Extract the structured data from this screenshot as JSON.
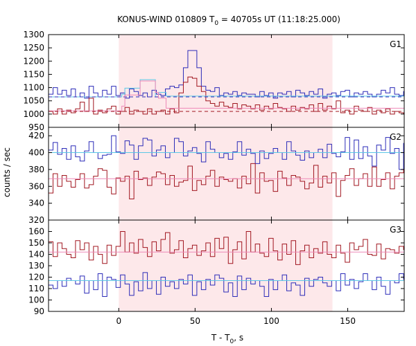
{
  "chart_data": {
    "type": "line",
    "title": {
      "prefix": "KONUS-WIND 010809 T",
      "sub": "0",
      "suffix": " = 40705s UT (11:18:25.000)"
    },
    "xlabel": {
      "prefix": "T - T",
      "sub": "0",
      "suffix": ", s"
    },
    "ylabel": "counts / sec",
    "xlim": [
      -46,
      187
    ],
    "xticks": [
      0,
      50,
      100,
      150
    ],
    "highlight_interval": [
      0,
      140
    ],
    "colors": {
      "blue": "#2a2ab8",
      "red": "#a0141e",
      "cyan": "#5bc7e6",
      "pink": "#ee88b8",
      "shade": "#fde8ea"
    },
    "panels": [
      {
        "label": "G1",
        "ylim": [
          950,
          1300
        ],
        "yticks": [
          950,
          1000,
          1050,
          1100,
          1150,
          1200,
          1250,
          1300
        ],
        "bin_width": 2.944,
        "series": [
          {
            "name": "G1 blue",
            "color_key": "blue",
            "style": "step",
            "values": [
              1075,
              1100,
              1075,
              1090,
              1070,
              1095,
              1065,
              1080,
              1060,
              1105,
              1080,
              1065,
              1090,
              1075,
              1105,
              1070,
              1080,
              1060,
              1095,
              1085,
              1070,
              1080,
              1065,
              1090,
              1075,
              1070,
              1095,
              1105,
              1100,
              1110,
              1175,
              1240,
              1240,
              1175,
              1105,
              1090,
              1085,
              1100,
              1070,
              1080,
              1075,
              1085,
              1070,
              1080,
              1075,
              1075,
              1065,
              1085,
              1070,
              1080,
              1060,
              1080,
              1075,
              1085,
              1065,
              1090,
              1080,
              1070,
              1085,
              1075,
              1095,
              1060,
              1075,
              1080,
              1070,
              1085,
              1090,
              1065,
              1080,
              1075,
              1085,
              1075,
              1065,
              1075,
              1090,
              1080,
              1100,
              1075,
              1070,
              1085
            ]
          },
          {
            "name": "G1 red",
            "color_key": "red",
            "style": "step",
            "values": [
              1010,
              1000,
              1020,
              1000,
              1015,
              1005,
              1020,
              1045,
              1010,
              1060,
              1000,
              1015,
              1005,
              1020,
              1030,
              1000,
              1010,
              1025,
              1000,
              1015,
              1010,
              1000,
              1020,
              1000,
              1010,
              1015,
              1000,
              1020,
              1005,
              1080,
              1120,
              1140,
              1135,
              1105,
              1085,
              1050,
              1040,
              1030,
              1045,
              1030,
              1025,
              1040,
              1020,
              1035,
              1030,
              1020,
              1035,
              1015,
              1030,
              1020,
              1040,
              1025,
              1020,
              1010,
              1030,
              1015,
              1025,
              1020,
              1035,
              1010,
              1040,
              1015,
              1030,
              1020,
              1050,
              1005,
              1015,
              1000,
              1030,
              1015,
              1010,
              1025,
              1000,
              1015,
              1005,
              1020,
              1000,
              1010,
              1005,
              1000
            ]
          },
          {
            "name": "G1 blue model",
            "color_key": "cyan",
            "style": "steps",
            "x": [
              -46,
              0,
              2,
              4,
              14,
              24,
              26,
              31,
              187
            ],
            "y": [
              1065,
              1065,
              1075,
              1098,
              1130,
              1065,
              1082,
              1068,
              1068
            ]
          },
          {
            "name": "G1 blue background",
            "color_key": "blue",
            "style": "dashed",
            "x": [
              -46,
              187
            ],
            "y": [
              1065,
              1065
            ]
          },
          {
            "name": "G1 red model",
            "color_key": "pink",
            "style": "steps",
            "x": [
              -46,
              0,
              2,
              4,
              14,
              24,
              26,
              31,
              187
            ],
            "y": [
              1012,
              1012,
              1030,
              1072,
              1125,
              1082,
              1060,
              1022,
              1022
            ]
          },
          {
            "name": "G1 red background",
            "color_key": "red",
            "style": "dashed",
            "x": [
              -46,
              187
            ],
            "y": [
              1010,
              1010
            ]
          }
        ]
      },
      {
        "label": "G2",
        "ylim": [
          320,
          430
        ],
        "yticks": [
          320,
          340,
          360,
          380,
          400,
          420
        ],
        "bin_width": 2.944,
        "series": [
          {
            "name": "G2 blue",
            "color_key": "blue",
            "style": "step",
            "values": [
              403,
              412,
              398,
              405,
              392,
              408,
              395,
              390,
              402,
              413,
              400,
              393,
              397,
              398,
              420,
              401,
              399,
              414,
              409,
              392,
              408,
              417,
              415,
              396,
              403,
              408,
              394,
              400,
              417,
              413,
              396,
              402,
              406,
              399,
              389,
              413,
              404,
              400,
              394,
              399,
              392,
              401,
              413,
              397,
              404,
              399,
              387,
              402,
              393,
              399,
              405,
              400,
              392,
              413,
              402,
              397,
              391,
              402,
              394,
              400,
              404,
              394,
              410,
              399,
              395,
              401,
              418,
              392,
              415,
              393,
              407,
              396,
              384,
              409,
              403,
              418,
              399,
              405,
              380,
              411
            ]
          },
          {
            "name": "G2 red",
            "color_key": "red",
            "style": "step",
            "values": [
              352,
              375,
              360,
              373,
              366,
              359,
              368,
              375,
              358,
              362,
              372,
              381,
              379,
              359,
              351,
              370,
              366,
              372,
              345,
              378,
              368,
              370,
              361,
              371,
              377,
              375,
              362,
              373,
              360,
              365,
              367,
              384,
              355,
              367,
              362,
              372,
              379,
              360,
              371,
              368,
              366,
              369,
              358,
              372,
              363,
              387,
              352,
              376,
              366,
              367,
              354,
              378,
              370,
              361,
              373,
              371,
              366,
              357,
              364,
              385,
              359,
              372,
              364,
              376,
              348,
              367,
              373,
              381,
              361,
              369,
              375,
              360,
              383,
              360,
              368,
              376,
              357,
              372,
              376,
              380
            ]
          },
          {
            "name": "G2 blue mean",
            "color_key": "cyan",
            "style": "line",
            "x": [
              -46,
              187
            ],
            "y": [
              400,
              400
            ]
          },
          {
            "name": "G2 red mean",
            "color_key": "pink",
            "style": "line",
            "x": [
              -46,
              187
            ],
            "y": [
              369,
              369
            ]
          }
        ]
      },
      {
        "label": "G3",
        "ylim": [
          90,
          170
        ],
        "yticks": [
          90,
          100,
          110,
          120,
          130,
          140,
          150,
          160
        ],
        "bin_width": 2.944,
        "series": [
          {
            "name": "G3 blue",
            "color_key": "blue",
            "style": "step",
            "values": [
              113,
              110,
              117,
              112,
              119,
              117,
              114,
              121,
              106,
              117,
              109,
              123,
              103,
              120,
              118,
              111,
              122,
              114,
              104,
              116,
              108,
              124,
              110,
              117,
              105,
              120,
              112,
              116,
              110,
              118,
              114,
              122,
              104,
              116,
              109,
              118,
              113,
              122,
              119,
              107,
              115,
              103,
              121,
              109,
              119,
              114,
              117,
              112,
              103,
              118,
              109,
              117,
              122,
              108,
              115,
              113,
              104,
              119,
              112,
              118,
              120,
              115,
              112,
              117,
              108,
              123,
              113,
              118,
              110,
              116,
              123,
              117,
              109,
              120,
              112,
              105,
              117,
              115,
              123,
              118
            ]
          },
          {
            "name": "G3 red",
            "color_key": "red",
            "style": "step",
            "values": [
              151,
              138,
              150,
              145,
              140,
              137,
              152,
              144,
              150,
              135,
              147,
              140,
              132,
              148,
              139,
              147,
              160,
              142,
              150,
              141,
              153,
              146,
              138,
              151,
              143,
              153,
              159,
              141,
              144,
              152,
              137,
              145,
              148,
              139,
              143,
              150,
              138,
              154,
              145,
              155,
              132,
              144,
              151,
              136,
              160,
              142,
              149,
              141,
              138,
              154,
              143,
              135,
              149,
              140,
              152,
              131,
              143,
              148,
              137,
              145,
              141,
              151,
              140,
              137,
              148,
              141,
              133,
              150,
              144,
              147,
              153,
              140,
              139,
              149,
              136,
              145,
              144,
              141,
              147,
              144
            ]
          },
          {
            "name": "G3 blue mean",
            "color_key": "cyan",
            "style": "line",
            "x": [
              -46,
              187
            ],
            "y": [
              117,
              117
            ]
          },
          {
            "name": "G3 red mean",
            "color_key": "pink",
            "style": "line",
            "x": [
              -46,
              187
            ],
            "y": [
              142,
              142
            ]
          }
        ]
      }
    ]
  }
}
